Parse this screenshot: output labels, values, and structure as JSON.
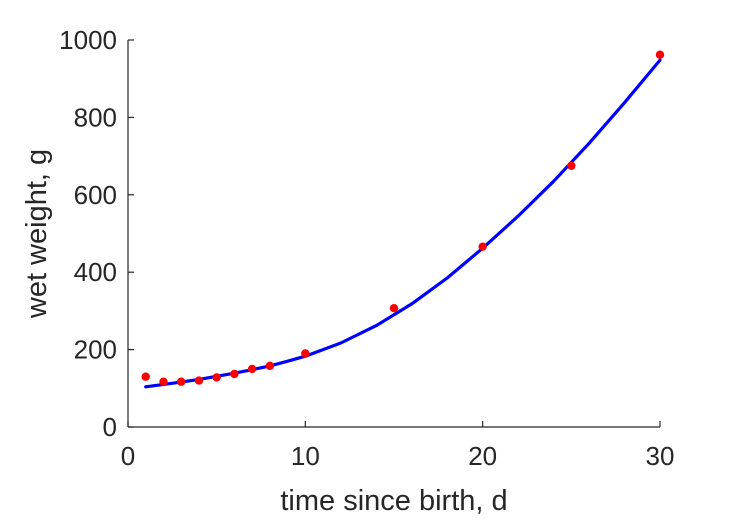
{
  "chart_data": {
    "type": "scatter",
    "title": "",
    "xlabel": "time since birth, d",
    "ylabel": "wet weight, g",
    "xlim": [
      0,
      30
    ],
    "ylim": [
      0,
      1000
    ],
    "xticks": [
      0,
      10,
      20,
      30
    ],
    "yticks": [
      0,
      200,
      400,
      600,
      800,
      1000
    ],
    "xtick_labels": [
      "0",
      "10",
      "20",
      "30"
    ],
    "ytick_labels": [
      "0",
      "200",
      "400",
      "600",
      "800",
      "1000"
    ],
    "grid": false,
    "legend": "none",
    "series": [
      {
        "kind": "points",
        "color": "#ff0000",
        "x": [
          1,
          2,
          3,
          4,
          5,
          6,
          7,
          8,
          10,
          15,
          20,
          25,
          30
        ],
        "y": [
          130,
          117,
          117,
          120,
          128,
          137,
          150,
          158,
          190,
          307,
          466,
          675,
          962
        ]
      },
      {
        "kind": "fitted-curve",
        "color": "#0000ff",
        "x": [
          1,
          2,
          3,
          4,
          5,
          6,
          7,
          8,
          9,
          10,
          12,
          14,
          16,
          18,
          20,
          22,
          24,
          26,
          28,
          30
        ],
        "y": [
          104,
          110,
          116,
          123,
          131,
          139,
          148,
          158,
          170,
          183,
          217,
          262,
          318,
          385,
          462,
          545,
          635,
          733,
          838,
          948
        ]
      }
    ]
  }
}
